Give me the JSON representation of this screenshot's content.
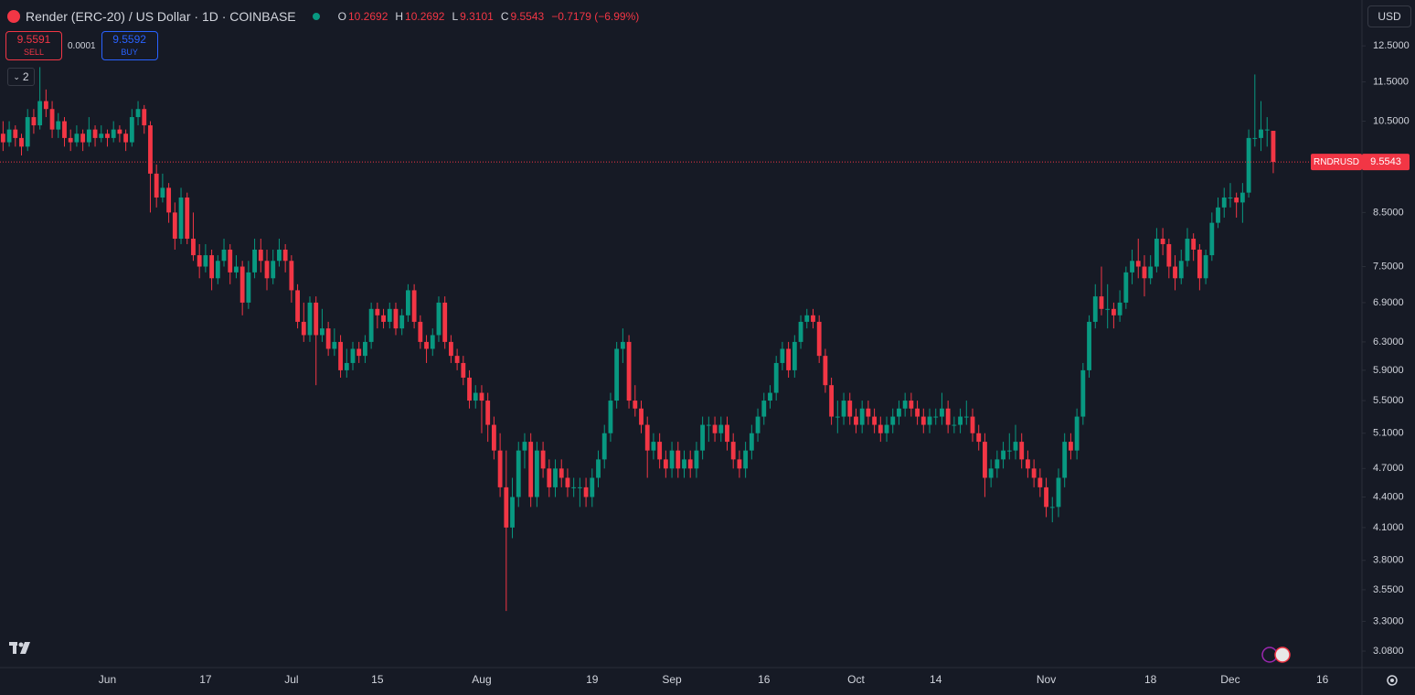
{
  "header": {
    "symbol": "Render (ERC-20) / US Dollar · 1D · COINBASE",
    "o_label": "O",
    "h_label": "H",
    "l_label": "L",
    "c_label": "C",
    "change": "−0.7179 (−6.99%)"
  },
  "trade": {
    "sell_price": 9.5591,
    "sell": "SELL",
    "spread": 0.0001,
    "buy_price": 9.5592,
    "buy": "BUY"
  },
  "indicators_count": 2,
  "currency": "USD",
  "chart_data": {
    "type": "candlestick",
    "price_line_label": "RNDRUSD",
    "up_color": "#089981",
    "down_color": "#f23645",
    "log_scale": true,
    "grid": false,
    "ylim": [
      2.965,
      13.9
    ],
    "yticks": [
      {
        "value": 12.5,
        "label": "12.5000"
      },
      {
        "value": 11.5,
        "label": "11.5000"
      },
      {
        "value": 10.5,
        "label": "10.5000"
      },
      {
        "value": 8.5,
        "label": "8.5000"
      },
      {
        "value": 7.5,
        "label": "7.5000"
      },
      {
        "value": 6.9,
        "label": "6.9000"
      },
      {
        "value": 6.3,
        "label": "6.3000"
      },
      {
        "value": 5.9,
        "label": "5.9000"
      },
      {
        "value": 5.5,
        "label": "5.5000"
      },
      {
        "value": 5.1,
        "label": "5.1000"
      },
      {
        "value": 4.7,
        "label": "4.7000"
      },
      {
        "value": 4.4,
        "label": "4.4000"
      },
      {
        "value": 4.1,
        "label": "4.1000"
      },
      {
        "value": 3.8,
        "label": "3.8000"
      },
      {
        "value": 3.55,
        "label": "3.5500"
      },
      {
        "value": 3.3,
        "label": "3.3000"
      },
      {
        "value": 3.08,
        "label": "3.0800"
      }
    ],
    "categories": [
      null,
      null,
      null,
      null,
      null,
      null,
      null,
      null,
      null,
      null,
      null,
      null,
      null,
      null,
      null,
      null,
      null,
      "Jun",
      null,
      null,
      null,
      null,
      null,
      null,
      null,
      null,
      null,
      null,
      null,
      null,
      null,
      null,
      null,
      "17",
      null,
      null,
      null,
      null,
      null,
      null,
      null,
      null,
      null,
      null,
      null,
      null,
      null,
      "Jul",
      null,
      null,
      null,
      null,
      null,
      null,
      null,
      null,
      null,
      null,
      null,
      null,
      null,
      "15",
      null,
      null,
      null,
      null,
      null,
      null,
      null,
      null,
      null,
      null,
      null,
      null,
      null,
      null,
      null,
      null,
      "Aug",
      null,
      null,
      null,
      null,
      null,
      null,
      null,
      null,
      null,
      null,
      null,
      null,
      null,
      null,
      null,
      null,
      null,
      "19",
      null,
      null,
      null,
      null,
      null,
      null,
      null,
      null,
      null,
      null,
      null,
      null,
      "Sep",
      null,
      null,
      null,
      null,
      null,
      null,
      null,
      null,
      null,
      null,
      null,
      null,
      null,
      null,
      "16",
      null,
      null,
      null,
      null,
      null,
      null,
      null,
      null,
      null,
      null,
      null,
      null,
      null,
      null,
      "Oct",
      null,
      null,
      null,
      null,
      null,
      null,
      null,
      null,
      null,
      null,
      null,
      null,
      "14",
      null,
      null,
      null,
      null,
      null,
      null,
      null,
      null,
      null,
      null,
      null,
      null,
      null,
      null,
      null,
      null,
      null,
      "Nov",
      null,
      null,
      null,
      null,
      null,
      null,
      null,
      null,
      null,
      null,
      null,
      null,
      null,
      null,
      null,
      null,
      "18",
      null,
      null,
      null,
      null,
      null,
      null,
      null,
      null,
      null,
      null,
      null,
      null,
      "Dec",
      null,
      null,
      null,
      null,
      null,
      null,
      null,
      null,
      null,
      null,
      null,
      null,
      null,
      null,
      "16"
    ],
    "ohlc": [
      [
        10.2,
        10.5,
        9.8,
        10.0
      ],
      [
        10.0,
        10.5,
        9.9,
        10.3
      ],
      [
        10.3,
        10.4,
        9.9,
        10.1
      ],
      [
        10.1,
        10.2,
        9.7,
        9.9
      ],
      [
        9.9,
        10.8,
        9.8,
        10.6
      ],
      [
        10.6,
        10.8,
        10.2,
        10.4
      ],
      [
        10.4,
        11.9,
        10.3,
        11.0
      ],
      [
        11.0,
        11.3,
        10.6,
        10.8
      ],
      [
        10.8,
        11.0,
        10.1,
        10.3
      ],
      [
        10.3,
        10.7,
        10.1,
        10.5
      ],
      [
        10.5,
        10.6,
        9.9,
        10.1
      ],
      [
        10.1,
        10.3,
        9.8,
        10.0
      ],
      [
        10.0,
        10.4,
        9.9,
        10.2
      ],
      [
        10.2,
        10.3,
        9.8,
        10.0
      ],
      [
        10.0,
        10.6,
        9.9,
        10.3
      ],
      [
        10.3,
        10.4,
        9.9,
        10.1
      ],
      [
        10.1,
        10.4,
        10.0,
        10.2
      ],
      [
        10.2,
        10.3,
        9.9,
        10.1
      ],
      [
        10.1,
        10.5,
        10.0,
        10.3
      ],
      [
        10.3,
        10.4,
        10.0,
        10.2
      ],
      [
        10.2,
        10.3,
        9.8,
        10.0
      ],
      [
        10.0,
        10.8,
        9.9,
        10.6
      ],
      [
        10.6,
        11.0,
        10.4,
        10.8
      ],
      [
        10.8,
        10.9,
        10.2,
        10.4
      ],
      [
        10.4,
        10.5,
        8.5,
        9.3
      ],
      [
        9.3,
        9.5,
        8.6,
        8.8
      ],
      [
        8.8,
        9.3,
        8.7,
        9.0
      ],
      [
        9.0,
        9.1,
        8.3,
        8.5
      ],
      [
        8.5,
        8.7,
        7.8,
        8.0
      ],
      [
        8.0,
        9.0,
        7.9,
        8.8
      ],
      [
        8.8,
        8.9,
        7.9,
        8.0
      ],
      [
        8.0,
        8.5,
        7.6,
        7.7
      ],
      [
        7.7,
        7.9,
        7.3,
        7.5
      ],
      [
        7.5,
        7.9,
        7.4,
        7.7
      ],
      [
        7.7,
        7.8,
        7.1,
        7.3
      ],
      [
        7.3,
        7.7,
        7.2,
        7.6
      ],
      [
        7.6,
        8.0,
        7.5,
        7.8
      ],
      [
        7.8,
        7.9,
        7.2,
        7.4
      ],
      [
        7.4,
        7.7,
        7.3,
        7.5
      ],
      [
        7.5,
        7.6,
        6.7,
        6.9
      ],
      [
        6.9,
        7.6,
        6.8,
        7.4
      ],
      [
        7.4,
        8.0,
        7.3,
        7.8
      ],
      [
        7.8,
        8.0,
        7.4,
        7.6
      ],
      [
        7.6,
        7.8,
        7.1,
        7.3
      ],
      [
        7.3,
        7.8,
        7.2,
        7.6
      ],
      [
        7.6,
        8.0,
        7.5,
        7.8
      ],
      [
        7.8,
        7.9,
        7.4,
        7.6
      ],
      [
        7.6,
        7.7,
        6.9,
        7.1
      ],
      [
        7.1,
        7.2,
        6.5,
        6.6
      ],
      [
        6.6,
        6.9,
        6.3,
        6.4
      ],
      [
        6.4,
        7.0,
        6.3,
        6.9
      ],
      [
        6.9,
        7.0,
        5.7,
        6.4
      ],
      [
        6.4,
        6.8,
        6.3,
        6.5
      ],
      [
        6.5,
        6.6,
        6.1,
        6.2
      ],
      [
        6.2,
        6.5,
        6.1,
        6.3
      ],
      [
        6.3,
        6.4,
        5.8,
        5.9
      ],
      [
        5.9,
        6.2,
        5.8,
        6.0
      ],
      [
        6.0,
        6.3,
        5.9,
        6.2
      ],
      [
        6.2,
        6.3,
        6.0,
        6.1
      ],
      [
        6.1,
        6.4,
        6.0,
        6.3
      ],
      [
        6.3,
        6.9,
        6.2,
        6.8
      ],
      [
        6.8,
        6.9,
        6.5,
        6.7
      ],
      [
        6.7,
        6.8,
        6.5,
        6.6
      ],
      [
        6.6,
        6.9,
        6.5,
        6.8
      ],
      [
        6.8,
        6.9,
        6.4,
        6.5
      ],
      [
        6.5,
        6.8,
        6.4,
        6.7
      ],
      [
        6.7,
        7.2,
        6.6,
        7.1
      ],
      [
        7.1,
        7.2,
        6.5,
        6.6
      ],
      [
        6.6,
        6.7,
        6.2,
        6.3
      ],
      [
        6.3,
        6.4,
        6.0,
        6.2
      ],
      [
        6.2,
        6.5,
        6.1,
        6.4
      ],
      [
        6.4,
        7.0,
        6.3,
        6.9
      ],
      [
        6.9,
        7.0,
        6.2,
        6.3
      ],
      [
        6.3,
        6.4,
        6.0,
        6.1
      ],
      [
        6.1,
        6.2,
        5.9,
        6.0
      ],
      [
        6.0,
        6.1,
        5.7,
        5.8
      ],
      [
        5.8,
        5.9,
        5.4,
        5.5
      ],
      [
        5.5,
        5.7,
        5.4,
        5.6
      ],
      [
        5.6,
        5.7,
        5.1,
        5.5
      ],
      [
        5.5,
        5.6,
        5.0,
        5.2
      ],
      [
        5.2,
        5.3,
        4.8,
        4.9
      ],
      [
        4.9,
        5.1,
        4.4,
        4.5
      ],
      [
        4.5,
        4.9,
        3.38,
        4.1
      ],
      [
        4.1,
        4.6,
        4.0,
        4.4
      ],
      [
        4.4,
        5.0,
        4.3,
        4.9
      ],
      [
        4.9,
        5.1,
        4.7,
        5.0
      ],
      [
        5.0,
        5.1,
        4.3,
        4.4
      ],
      [
        4.4,
        5.0,
        4.3,
        4.9
      ],
      [
        4.9,
        5.0,
        4.6,
        4.7
      ],
      [
        4.7,
        4.8,
        4.4,
        4.5
      ],
      [
        4.5,
        4.8,
        4.4,
        4.7
      ],
      [
        4.7,
        4.8,
        4.5,
        4.6
      ],
      [
        4.6,
        4.7,
        4.4,
        4.5
      ],
      [
        4.5,
        4.6,
        4.4,
        4.5
      ],
      [
        4.5,
        4.6,
        4.3,
        4.5
      ],
      [
        4.5,
        4.6,
        4.3,
        4.4
      ],
      [
        4.4,
        4.7,
        4.3,
        4.6
      ],
      [
        4.6,
        4.9,
        4.5,
        4.8
      ],
      [
        4.8,
        5.2,
        4.7,
        5.1
      ],
      [
        5.1,
        5.6,
        5.0,
        5.5
      ],
      [
        5.5,
        6.3,
        5.4,
        6.2
      ],
      [
        6.2,
        6.5,
        6.0,
        6.3
      ],
      [
        6.3,
        6.4,
        5.4,
        5.5
      ],
      [
        5.5,
        5.7,
        5.3,
        5.4
      ],
      [
        5.4,
        5.5,
        5.1,
        5.2
      ],
      [
        5.2,
        5.3,
        4.6,
        4.9
      ],
      [
        4.9,
        5.1,
        4.8,
        5.0
      ],
      [
        5.0,
        5.1,
        4.7,
        4.8
      ],
      [
        4.8,
        4.9,
        4.6,
        4.7
      ],
      [
        4.7,
        5.0,
        4.6,
        4.9
      ],
      [
        4.9,
        5.0,
        4.6,
        4.7
      ],
      [
        4.7,
        4.9,
        4.6,
        4.8
      ],
      [
        4.8,
        4.9,
        4.6,
        4.7
      ],
      [
        4.7,
        5.0,
        4.6,
        4.9
      ],
      [
        4.9,
        5.3,
        4.8,
        5.2
      ],
      [
        5.2,
        5.3,
        5.0,
        5.2
      ],
      [
        5.2,
        5.3,
        5.0,
        5.1
      ],
      [
        5.1,
        5.3,
        5.0,
        5.2
      ],
      [
        5.2,
        5.3,
        4.9,
        5.0
      ],
      [
        5.0,
        5.1,
        4.7,
        4.8
      ],
      [
        4.8,
        4.9,
        4.6,
        4.7
      ],
      [
        4.7,
        5.0,
        4.6,
        4.9
      ],
      [
        4.9,
        5.2,
        4.8,
        5.1
      ],
      [
        5.1,
        5.4,
        5.0,
        5.3
      ],
      [
        5.3,
        5.6,
        5.2,
        5.5
      ],
      [
        5.5,
        5.7,
        5.4,
        5.6
      ],
      [
        5.6,
        6.1,
        5.5,
        6.0
      ],
      [
        6.0,
        6.3,
        5.9,
        6.2
      ],
      [
        6.2,
        6.3,
        5.8,
        5.9
      ],
      [
        5.9,
        6.4,
        5.8,
        6.3
      ],
      [
        6.3,
        6.7,
        6.2,
        6.6
      ],
      [
        6.6,
        6.8,
        6.5,
        6.7
      ],
      [
        6.7,
        6.8,
        6.5,
        6.6
      ],
      [
        6.6,
        6.7,
        6.0,
        6.1
      ],
      [
        6.1,
        6.2,
        5.6,
        5.7
      ],
      [
        5.7,
        5.8,
        5.2,
        5.3
      ],
      [
        5.3,
        5.5,
        5.1,
        5.3
      ],
      [
        5.3,
        5.6,
        5.2,
        5.5
      ],
      [
        5.5,
        5.6,
        5.2,
        5.3
      ],
      [
        5.3,
        5.4,
        5.1,
        5.2
      ],
      [
        5.2,
        5.5,
        5.1,
        5.4
      ],
      [
        5.4,
        5.5,
        5.2,
        5.3
      ],
      [
        5.3,
        5.4,
        5.1,
        5.2
      ],
      [
        5.2,
        5.3,
        5.0,
        5.1
      ],
      [
        5.1,
        5.3,
        5.0,
        5.2
      ],
      [
        5.2,
        5.4,
        5.1,
        5.3
      ],
      [
        5.3,
        5.5,
        5.2,
        5.4
      ],
      [
        5.4,
        5.6,
        5.3,
        5.5
      ],
      [
        5.5,
        5.6,
        5.3,
        5.4
      ],
      [
        5.4,
        5.5,
        5.2,
        5.3
      ],
      [
        5.3,
        5.4,
        5.1,
        5.2
      ],
      [
        5.2,
        5.4,
        5.1,
        5.3
      ],
      [
        5.3,
        5.4,
        5.2,
        5.3
      ],
      [
        5.3,
        5.6,
        5.2,
        5.4
      ],
      [
        5.4,
        5.5,
        5.1,
        5.2
      ],
      [
        5.2,
        5.3,
        5.1,
        5.2
      ],
      [
        5.2,
        5.4,
        5.1,
        5.3
      ],
      [
        5.3,
        5.5,
        5.2,
        5.3
      ],
      [
        5.3,
        5.4,
        5.0,
        5.1
      ],
      [
        5.1,
        5.2,
        4.9,
        5.0
      ],
      [
        5.0,
        5.1,
        4.4,
        4.6
      ],
      [
        4.6,
        4.8,
        4.5,
        4.7
      ],
      [
        4.7,
        4.9,
        4.6,
        4.8
      ],
      [
        4.8,
        5.0,
        4.7,
        4.9
      ],
      [
        4.9,
        5.1,
        4.8,
        4.9
      ],
      [
        4.9,
        5.2,
        4.8,
        5.0
      ],
      [
        5.0,
        5.1,
        4.7,
        4.8
      ],
      [
        4.8,
        4.9,
        4.6,
        4.7
      ],
      [
        4.7,
        4.8,
        4.5,
        4.6
      ],
      [
        4.6,
        4.7,
        4.4,
        4.5
      ],
      [
        4.5,
        4.6,
        4.2,
        4.3
      ],
      [
        4.3,
        4.4,
        4.15,
        4.3
      ],
      [
        4.3,
        4.7,
        4.2,
        4.6
      ],
      [
        4.6,
        5.1,
        4.5,
        5.0
      ],
      [
        5.0,
        5.1,
        4.8,
        4.9
      ],
      [
        4.9,
        5.4,
        4.8,
        5.3
      ],
      [
        5.3,
        6.0,
        5.2,
        5.9
      ],
      [
        5.9,
        6.7,
        5.8,
        6.6
      ],
      [
        6.6,
        7.2,
        6.5,
        7.0
      ],
      [
        7.0,
        7.5,
        6.7,
        6.8
      ],
      [
        6.8,
        7.2,
        6.5,
        6.8
      ],
      [
        6.8,
        6.9,
        6.5,
        6.7
      ],
      [
        6.7,
        7.1,
        6.6,
        6.9
      ],
      [
        6.9,
        7.5,
        6.8,
        7.4
      ],
      [
        7.4,
        7.8,
        7.2,
        7.6
      ],
      [
        7.6,
        8.0,
        7.3,
        7.5
      ],
      [
        7.5,
        7.7,
        7.0,
        7.3
      ],
      [
        7.3,
        7.7,
        7.2,
        7.5
      ],
      [
        7.5,
        8.2,
        7.4,
        8.0
      ],
      [
        8.0,
        8.2,
        7.7,
        7.9
      ],
      [
        7.9,
        8.0,
        7.3,
        7.5
      ],
      [
        7.5,
        7.7,
        7.1,
        7.3
      ],
      [
        7.3,
        7.8,
        7.2,
        7.6
      ],
      [
        7.6,
        8.2,
        7.5,
        8.0
      ],
      [
        8.0,
        8.1,
        7.6,
        7.8
      ],
      [
        7.8,
        7.9,
        7.1,
        7.3
      ],
      [
        7.3,
        7.8,
        7.2,
        7.7
      ],
      [
        7.7,
        8.5,
        7.6,
        8.3
      ],
      [
        8.3,
        8.8,
        8.2,
        8.6
      ],
      [
        8.6,
        9.0,
        8.4,
        8.8
      ],
      [
        8.8,
        9.1,
        8.6,
        8.8
      ],
      [
        8.8,
        8.9,
        8.4,
        8.7
      ],
      [
        8.7,
        9.1,
        8.3,
        8.9
      ],
      [
        8.9,
        10.3,
        8.8,
        10.1
      ],
      [
        10.1,
        11.7,
        9.9,
        10.1
      ],
      [
        10.1,
        11.0,
        9.8,
        10.3
      ],
      [
        10.3,
        10.6,
        9.9,
        10.3
      ],
      [
        10.2692,
        10.2692,
        9.3101,
        9.5543
      ],
      null,
      null,
      null,
      null,
      null,
      null,
      null,
      null
    ]
  }
}
